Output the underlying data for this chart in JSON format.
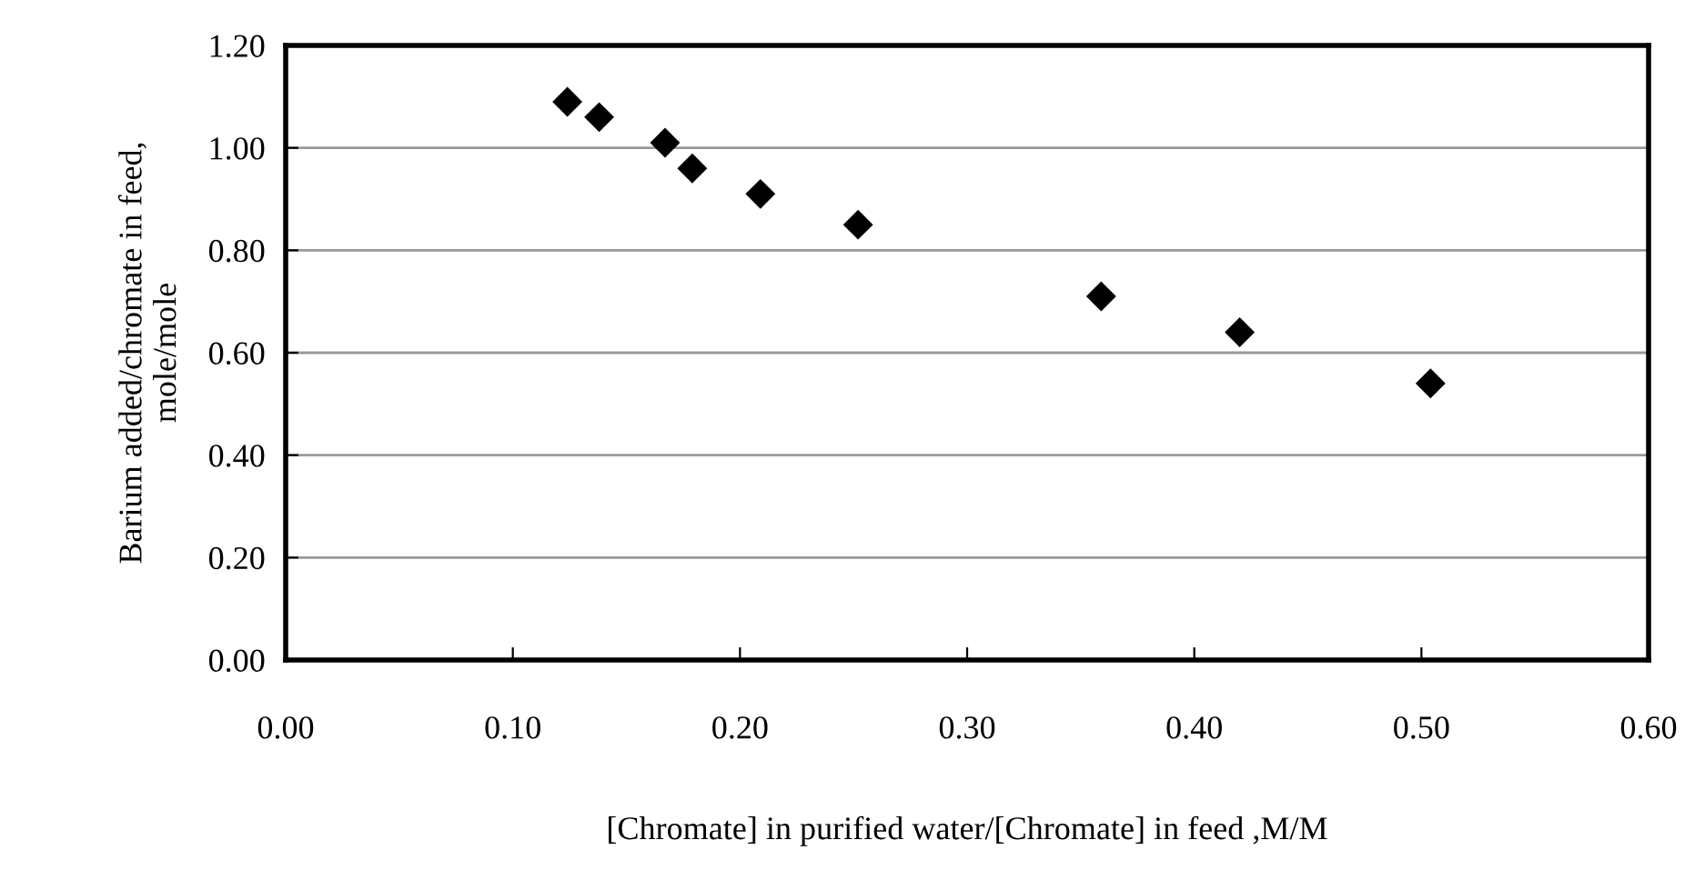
{
  "chart_data": {
    "type": "scatter",
    "xlabel": "[Chromate] in purified water/[Chromate] in feed ,M/M",
    "ylabel": "Barium added/chromate in feed,\nmole/mole",
    "x": [
      0.124,
      0.138,
      0.167,
      0.179,
      0.209,
      0.252,
      0.359,
      0.42,
      0.504
    ],
    "series": [
      {
        "color": "#000000",
        "values": [
          1.09,
          1.06,
          1.01,
          0.96,
          0.91,
          0.85,
          0.71,
          0.64,
          0.54
        ]
      }
    ],
    "marker": "diamond",
    "xlim": [
      0,
      0.6
    ],
    "ylim": [
      0,
      1.2
    ],
    "xticks": [
      {
        "value": 0,
        "label": "0.00"
      },
      {
        "value": 0.1,
        "label": "0.10"
      },
      {
        "value": 0.2,
        "label": "0.20"
      },
      {
        "value": 0.3,
        "label": "0.30"
      },
      {
        "value": 0.4,
        "label": "0.40"
      },
      {
        "value": 0.5,
        "label": "0.50"
      },
      {
        "value": 0.6,
        "label": "0.60"
      }
    ],
    "yticks": [
      {
        "value": 0,
        "label": "0.00"
      },
      {
        "value": 0.2,
        "label": "0.20"
      },
      {
        "value": 0.4,
        "label": "0.40"
      },
      {
        "value": 0.6,
        "label": "0.60"
      },
      {
        "value": 0.8,
        "label": "0.80"
      },
      {
        "value": 1.0,
        "label": "1.00"
      },
      {
        "value": 1.2,
        "label": "1.20"
      }
    ],
    "grid": "y"
  }
}
